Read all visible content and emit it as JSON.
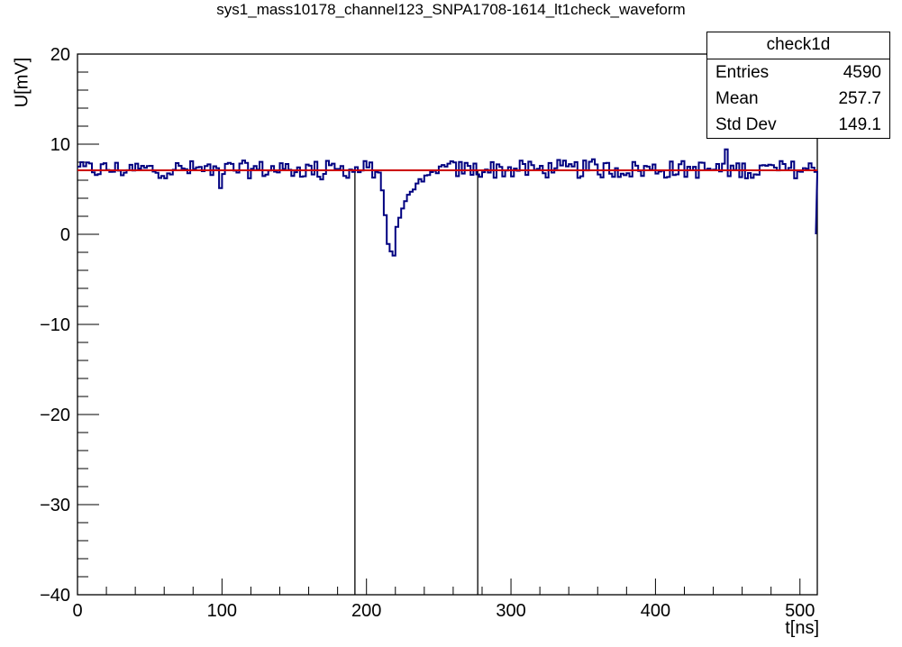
{
  "chart_data": {
    "type": "line",
    "title": "sys1_mass10178_channel123_SNPA1708-1614_lt1check_waveform",
    "xlabel": "t[ns]",
    "ylabel": "U[mV]",
    "xlim": [
      0,
      512
    ],
    "ylim": [
      -40,
      20
    ],
    "x_ticks": [
      0,
      100,
      200,
      300,
      400,
      500
    ],
    "y_ticks": [
      -40,
      -30,
      -20,
      -10,
      0,
      10,
      20
    ],
    "grid": false,
    "series": [
      {
        "name": "check1d",
        "color": "#000080",
        "style": "step",
        "baseline": 7.2,
        "noise_amplitude": 1.0,
        "pulse": {
          "x": [
            205,
            207,
            210,
            212,
            214,
            216,
            218,
            220,
            222,
            224,
            226,
            228,
            230,
            232,
            234,
            236,
            238,
            240,
            242,
            244,
            246,
            248,
            250
          ],
          "y": [
            7.0,
            6.5,
            4.5,
            2.5,
            -1.0,
            -1.8,
            -2.1,
            0.5,
            2.0,
            2.5,
            3.5,
            4.0,
            4.5,
            5.0,
            5.5,
            5.8,
            6.0,
            6.3,
            6.5,
            6.8,
            7.0,
            7.1,
            7.2
          ]
        },
        "end_drop": {
          "x": 511,
          "y": 0
        }
      },
      {
        "name": "fit",
        "color": "#cc0000",
        "style": "line",
        "x": [
          0,
          512
        ],
        "y": [
          7.1,
          7.1
        ]
      }
    ],
    "vertical_lines": [
      192,
      277
    ],
    "stats_box": {
      "title": "check1d",
      "rows": [
        {
          "label": "Entries",
          "value": "4590"
        },
        {
          "label": "Mean",
          "value": "257.7"
        },
        {
          "label": "Std Dev",
          "value": "149.1"
        }
      ]
    }
  }
}
